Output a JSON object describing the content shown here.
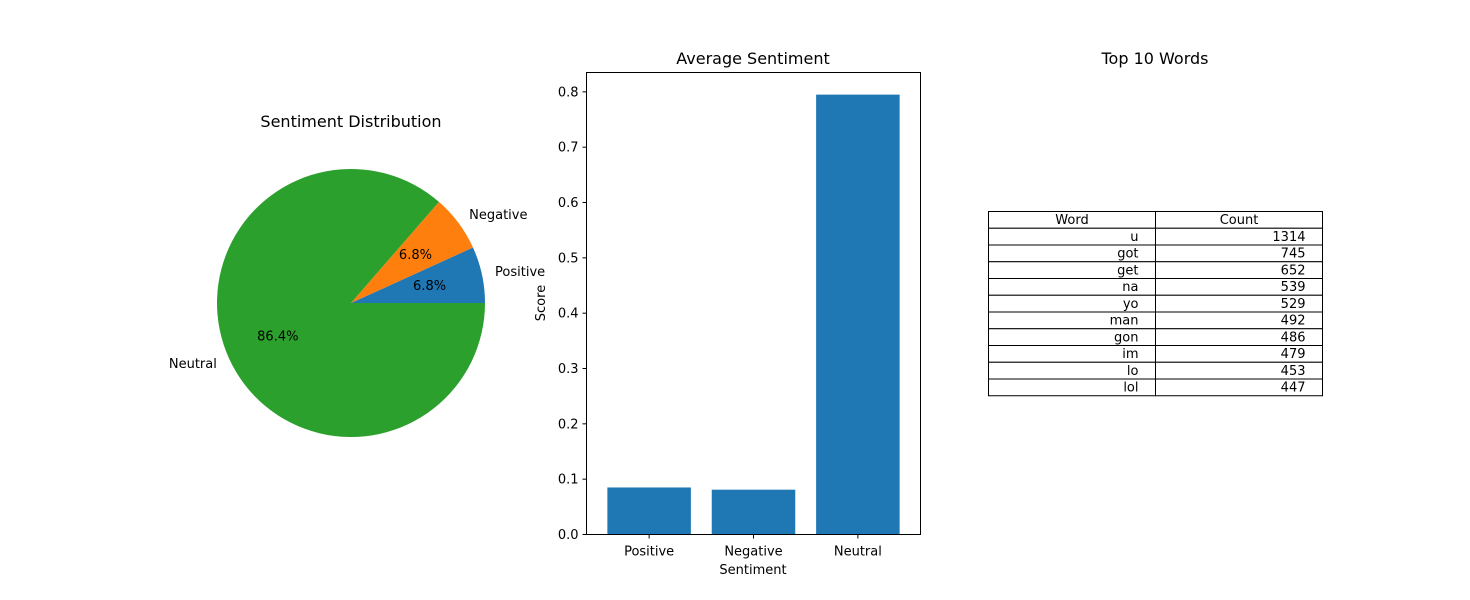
{
  "colors": {
    "positive": "#1f77b4",
    "negative": "#ff7f0e",
    "neutral": "#2ca02c",
    "bar": "#1f77b4"
  },
  "chart_data": [
    {
      "type": "pie",
      "title": "Sentiment Distribution",
      "labels": [
        "Positive",
        "Negative",
        "Neutral"
      ],
      "values": [
        6.8,
        6.8,
        86.4
      ],
      "pct_labels": [
        "6.8%",
        "6.8%",
        "86.4%"
      ],
      "colors": [
        "#1f77b4",
        "#ff7f0e",
        "#2ca02c"
      ]
    },
    {
      "type": "bar",
      "title": "Average Sentiment",
      "categories": [
        "Positive",
        "Negative",
        "Neutral"
      ],
      "values": [
        0.085,
        0.081,
        0.795
      ],
      "xlabel": "Sentiment",
      "ylabel": "Score",
      "ylim": [
        0,
        0.835
      ],
      "yticks": [
        "0.0",
        "0.1",
        "0.2",
        "0.3",
        "0.4",
        "0.5",
        "0.6",
        "0.7",
        "0.8"
      ],
      "grid": false
    },
    {
      "type": "table",
      "title": "Top 10 Words",
      "columns": [
        "Word",
        "Count"
      ],
      "rows": [
        [
          "u",
          "1314"
        ],
        [
          "got",
          "745"
        ],
        [
          "get",
          "652"
        ],
        [
          "na",
          "539"
        ],
        [
          "yo",
          "529"
        ],
        [
          "man",
          "492"
        ],
        [
          "gon",
          "486"
        ],
        [
          "im",
          "479"
        ],
        [
          "lo",
          "453"
        ],
        [
          "lol",
          "447"
        ]
      ]
    }
  ]
}
